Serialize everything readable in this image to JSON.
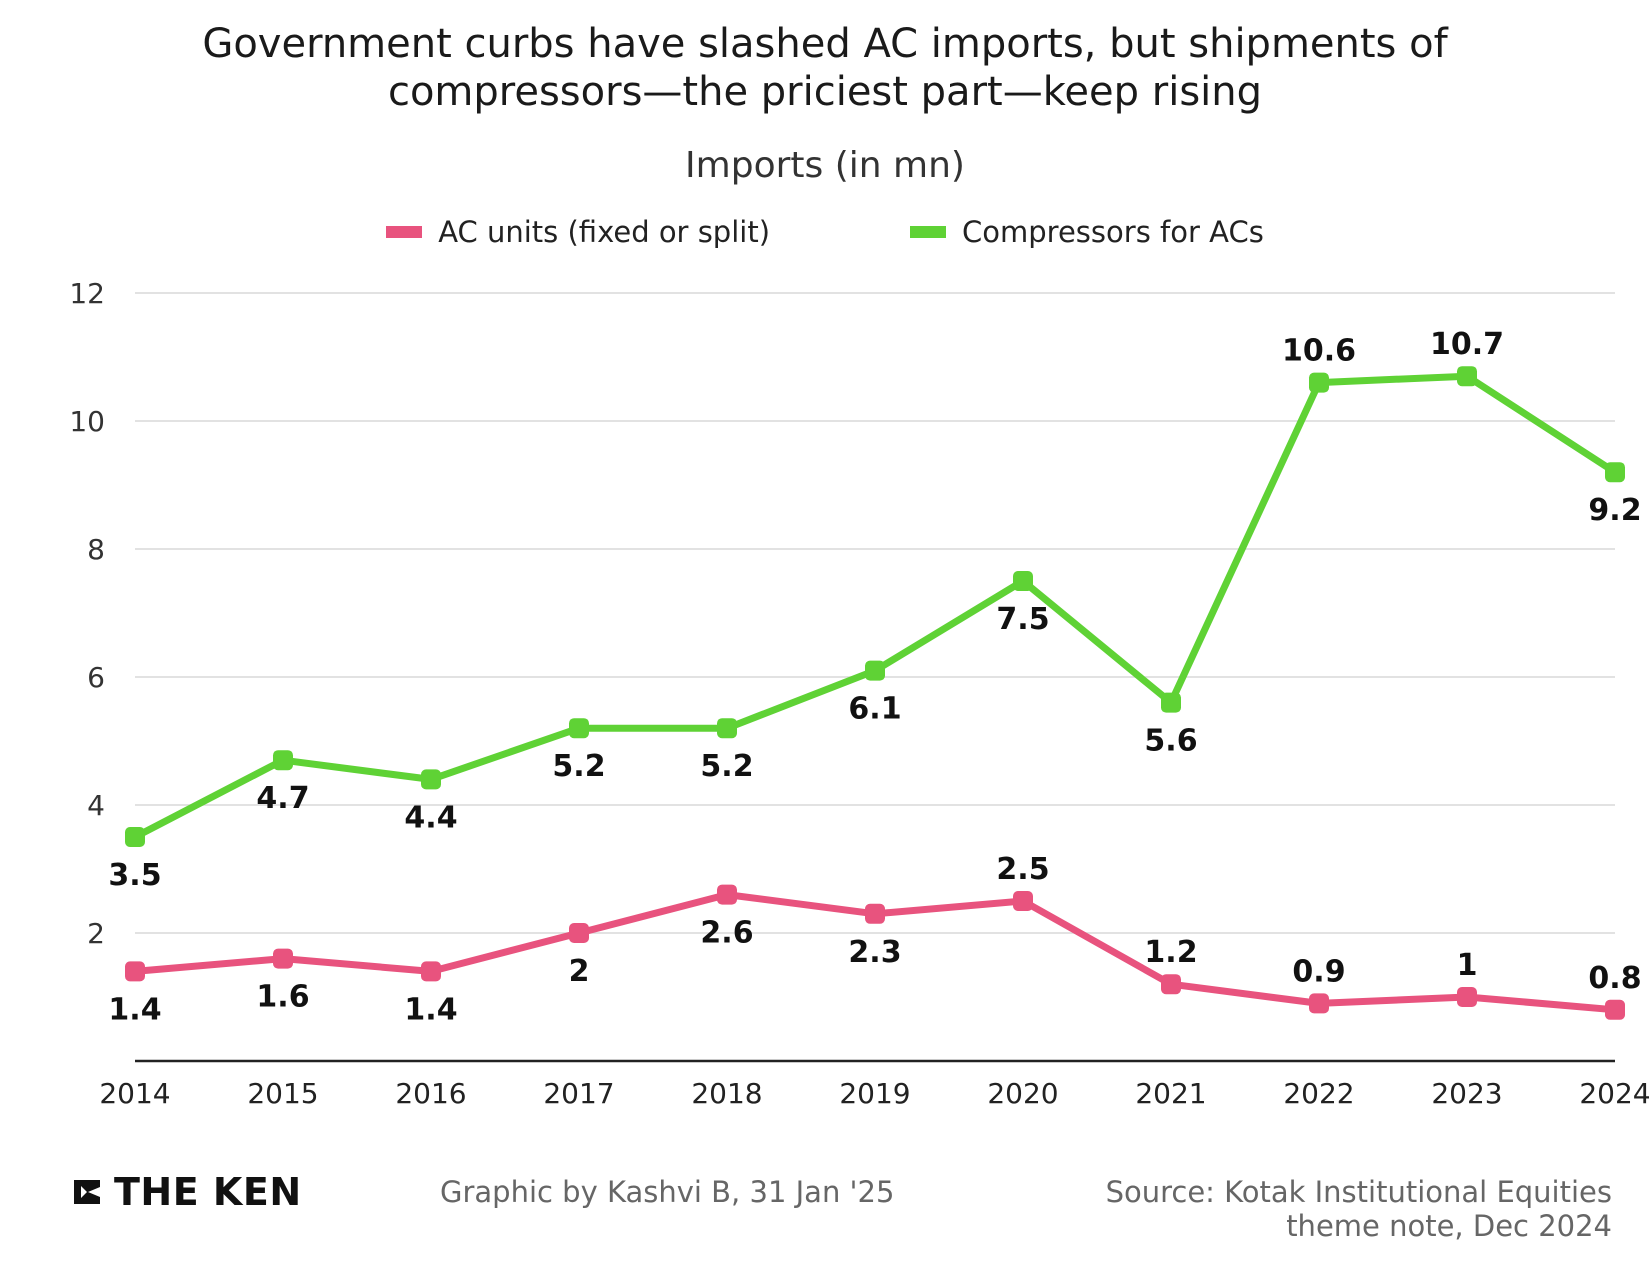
{
  "chart_data": {
    "type": "line",
    "title_lines": [
      "Government curbs have slashed AC imports, but shipments of",
      "compressors—the priciest part—keep rising"
    ],
    "subtitle": "Imports (in mn)",
    "x": [
      "2014",
      "2015",
      "2016",
      "2017",
      "2018",
      "2019",
      "2020",
      "2021",
      "2022",
      "2023",
      "2024"
    ],
    "ylim": [
      0,
      12
    ],
    "yticks": [
      "2",
      "4",
      "6",
      "8",
      "10",
      "12"
    ],
    "grid": true,
    "legend_position": "top-center",
    "series": [
      {
        "name": "AC units (fixed or split)",
        "color": "#e8537e",
        "values": [
          1.4,
          1.6,
          1.4,
          2,
          2.6,
          2.3,
          2.5,
          1.2,
          0.9,
          1,
          0.8
        ],
        "labels": [
          "1.4",
          "1.6",
          "1.4",
          "2",
          "2.6",
          "2.3",
          "2.5",
          "1.2",
          "0.9",
          "1",
          "0.8"
        ]
      },
      {
        "name": "Compressors for ACs",
        "color": "#5fd235",
        "values": [
          3.5,
          4.7,
          4.4,
          5.2,
          5.2,
          6.1,
          7.5,
          5.6,
          10.6,
          10.7,
          9.2
        ],
        "labels": [
          "3.5",
          "4.7",
          "4.4",
          "5.2",
          "5.2",
          "6.1",
          "7.5",
          "5.6",
          "10.6",
          "10.7",
          "9.2"
        ]
      }
    ]
  },
  "footer": {
    "logo_text": "THE KEN",
    "credit": "Graphic by Kashvi B, 31 Jan '25",
    "source_lines": [
      "Source: Kotak Institutional Equities",
      "theme note, Dec 2024"
    ]
  }
}
